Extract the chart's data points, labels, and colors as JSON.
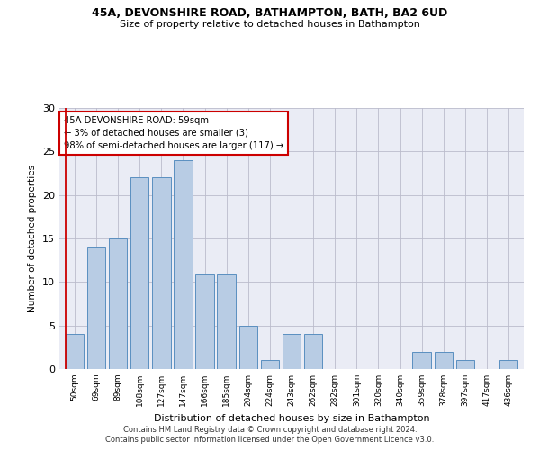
{
  "title1": "45A, DEVONSHIRE ROAD, BATHAMPTON, BATH, BA2 6UD",
  "title2": "Size of property relative to detached houses in Bathampton",
  "xlabel": "Distribution of detached houses by size in Bathampton",
  "ylabel": "Number of detached properties",
  "bar_labels": [
    "50sqm",
    "69sqm",
    "89sqm",
    "108sqm",
    "127sqm",
    "147sqm",
    "166sqm",
    "185sqm",
    "204sqm",
    "224sqm",
    "243sqm",
    "262sqm",
    "282sqm",
    "301sqm",
    "320sqm",
    "340sqm",
    "359sqm",
    "378sqm",
    "397sqm",
    "417sqm",
    "436sqm"
  ],
  "bar_values": [
    4,
    14,
    15,
    22,
    22,
    24,
    11,
    11,
    5,
    1,
    4,
    4,
    0,
    0,
    0,
    0,
    2,
    2,
    1,
    0,
    1
  ],
  "bar_color": "#b8cce4",
  "bar_edge_color": "#5a8fc0",
  "annotation_box_text": "45A DEVONSHIRE ROAD: 59sqm\n← 3% of detached houses are smaller (3)\n98% of semi-detached houses are larger (117) →",
  "annotation_box_color": "white",
  "annotation_box_edge_color": "#cc0000",
  "highlight_line_color": "#cc0000",
  "ylim": [
    0,
    30
  ],
  "yticks": [
    0,
    5,
    10,
    15,
    20,
    25,
    30
  ],
  "grid_color": "#bbbbcc",
  "bg_color": "#eaecf5",
  "footer1": "Contains HM Land Registry data © Crown copyright and database right 2024.",
  "footer2": "Contains public sector information licensed under the Open Government Licence v3.0."
}
